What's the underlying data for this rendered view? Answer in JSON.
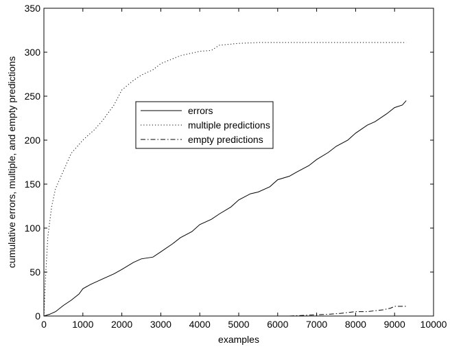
{
  "chart_data": {
    "type": "line",
    "title": "",
    "xlabel": "examples",
    "ylabel": "cumulative errors, multiple, and empty predictions",
    "xlim": [
      0,
      10000
    ],
    "ylim": [
      0,
      350
    ],
    "x_ticks": [
      0,
      1000,
      2000,
      3000,
      4000,
      5000,
      6000,
      7000,
      8000,
      9000,
      10000
    ],
    "y_ticks": [
      0,
      50,
      100,
      150,
      200,
      250,
      300,
      350
    ],
    "grid": false,
    "legend_position": "center-left",
    "series": [
      {
        "name": "errors",
        "style": "solid",
        "x": [
          0,
          150,
          300,
          500,
          700,
          900,
          1000,
          1200,
          1500,
          1800,
          2000,
          2300,
          2500,
          2800,
          3000,
          3300,
          3500,
          3800,
          4000,
          4300,
          4500,
          4800,
          5000,
          5300,
          5500,
          5800,
          6000,
          6300,
          6500,
          6800,
          7000,
          7300,
          7500,
          7800,
          8000,
          8300,
          8500,
          8800,
          9000,
          9200,
          9300
        ],
        "y": [
          0,
          2,
          5,
          12,
          18,
          25,
          31,
          36,
          42,
          48,
          53,
          61,
          65,
          67,
          73,
          82,
          89,
          96,
          104,
          110,
          116,
          124,
          132,
          139,
          141,
          147,
          155,
          159,
          164,
          171,
          178,
          186,
          193,
          200,
          208,
          217,
          221,
          230,
          237,
          240,
          245
        ]
      },
      {
        "name": "multiple predictions",
        "style": "dotted",
        "x": [
          0,
          50,
          100,
          200,
          300,
          500,
          700,
          1000,
          1300,
          1500,
          1800,
          2000,
          2300,
          2500,
          2800,
          3000,
          3500,
          4000,
          4300,
          4500,
          5000,
          5500,
          6000,
          7000,
          8000,
          9000,
          9300
        ],
        "y": [
          0,
          50,
          90,
          125,
          145,
          165,
          185,
          200,
          212,
          222,
          240,
          257,
          268,
          274,
          280,
          287,
          296,
          301,
          302,
          308,
          310,
          311,
          311,
          311,
          311,
          311,
          311
        ]
      },
      {
        "name": "empty predictions",
        "style": "dashdot",
        "x": [
          6300,
          6800,
          7300,
          7600,
          7800,
          8000,
          8300,
          8500,
          8700,
          8900,
          9000,
          9300
        ],
        "y": [
          0,
          1,
          2,
          3,
          4,
          5,
          5,
          6,
          7,
          9,
          11,
          11
        ]
      }
    ]
  }
}
